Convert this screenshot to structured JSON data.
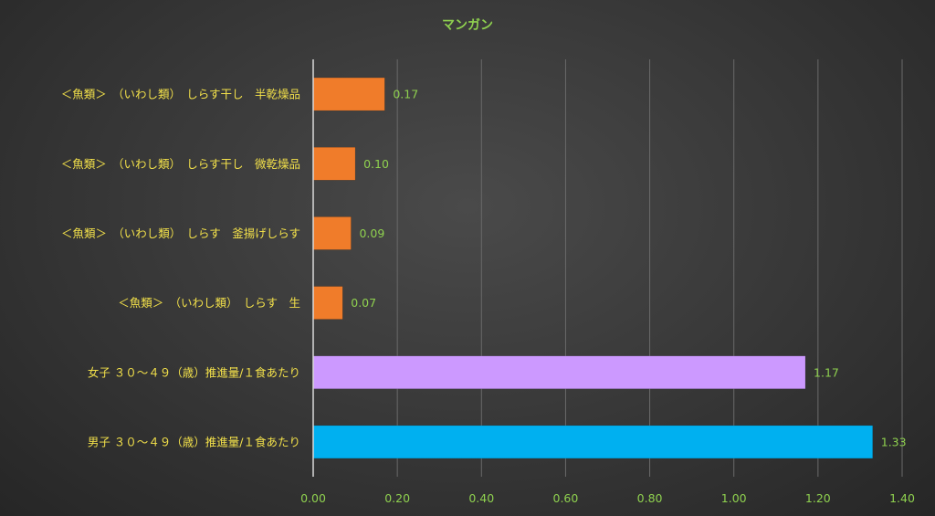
{
  "chart_data": {
    "type": "bar",
    "orientation": "horizontal",
    "title": "マンガン",
    "categories": [
      "＜魚類＞　（いわし類）　しらす干し　半乾燥品",
      "＜魚類＞　（いわし類）　しらす干し　微乾燥品",
      "＜魚類＞　（いわし類）　しらす　釜揚げしらす",
      "＜魚類＞　（いわし類）　しらす　生",
      "女子 ３０～４９（歳）推進量/１食あたり",
      "男子 ３０～４９（歳）推進量/１食あたり"
    ],
    "values": [
      0.17,
      0.1,
      0.09,
      0.07,
      1.17,
      1.33
    ],
    "value_labels": [
      "0.17",
      "0.10",
      "0.09",
      "0.07",
      "1.17",
      "1.33"
    ],
    "bar_colors": [
      "#f07c2a",
      "#f07c2a",
      "#f07c2a",
      "#f07c2a",
      "#cc99ff",
      "#00b0f0"
    ],
    "xlim": [
      0,
      1.4
    ],
    "xticks": [
      "0.00",
      "0.20",
      "0.40",
      "0.60",
      "0.80",
      "1.00",
      "1.20",
      "1.40"
    ],
    "grid": true,
    "legend": "none"
  }
}
